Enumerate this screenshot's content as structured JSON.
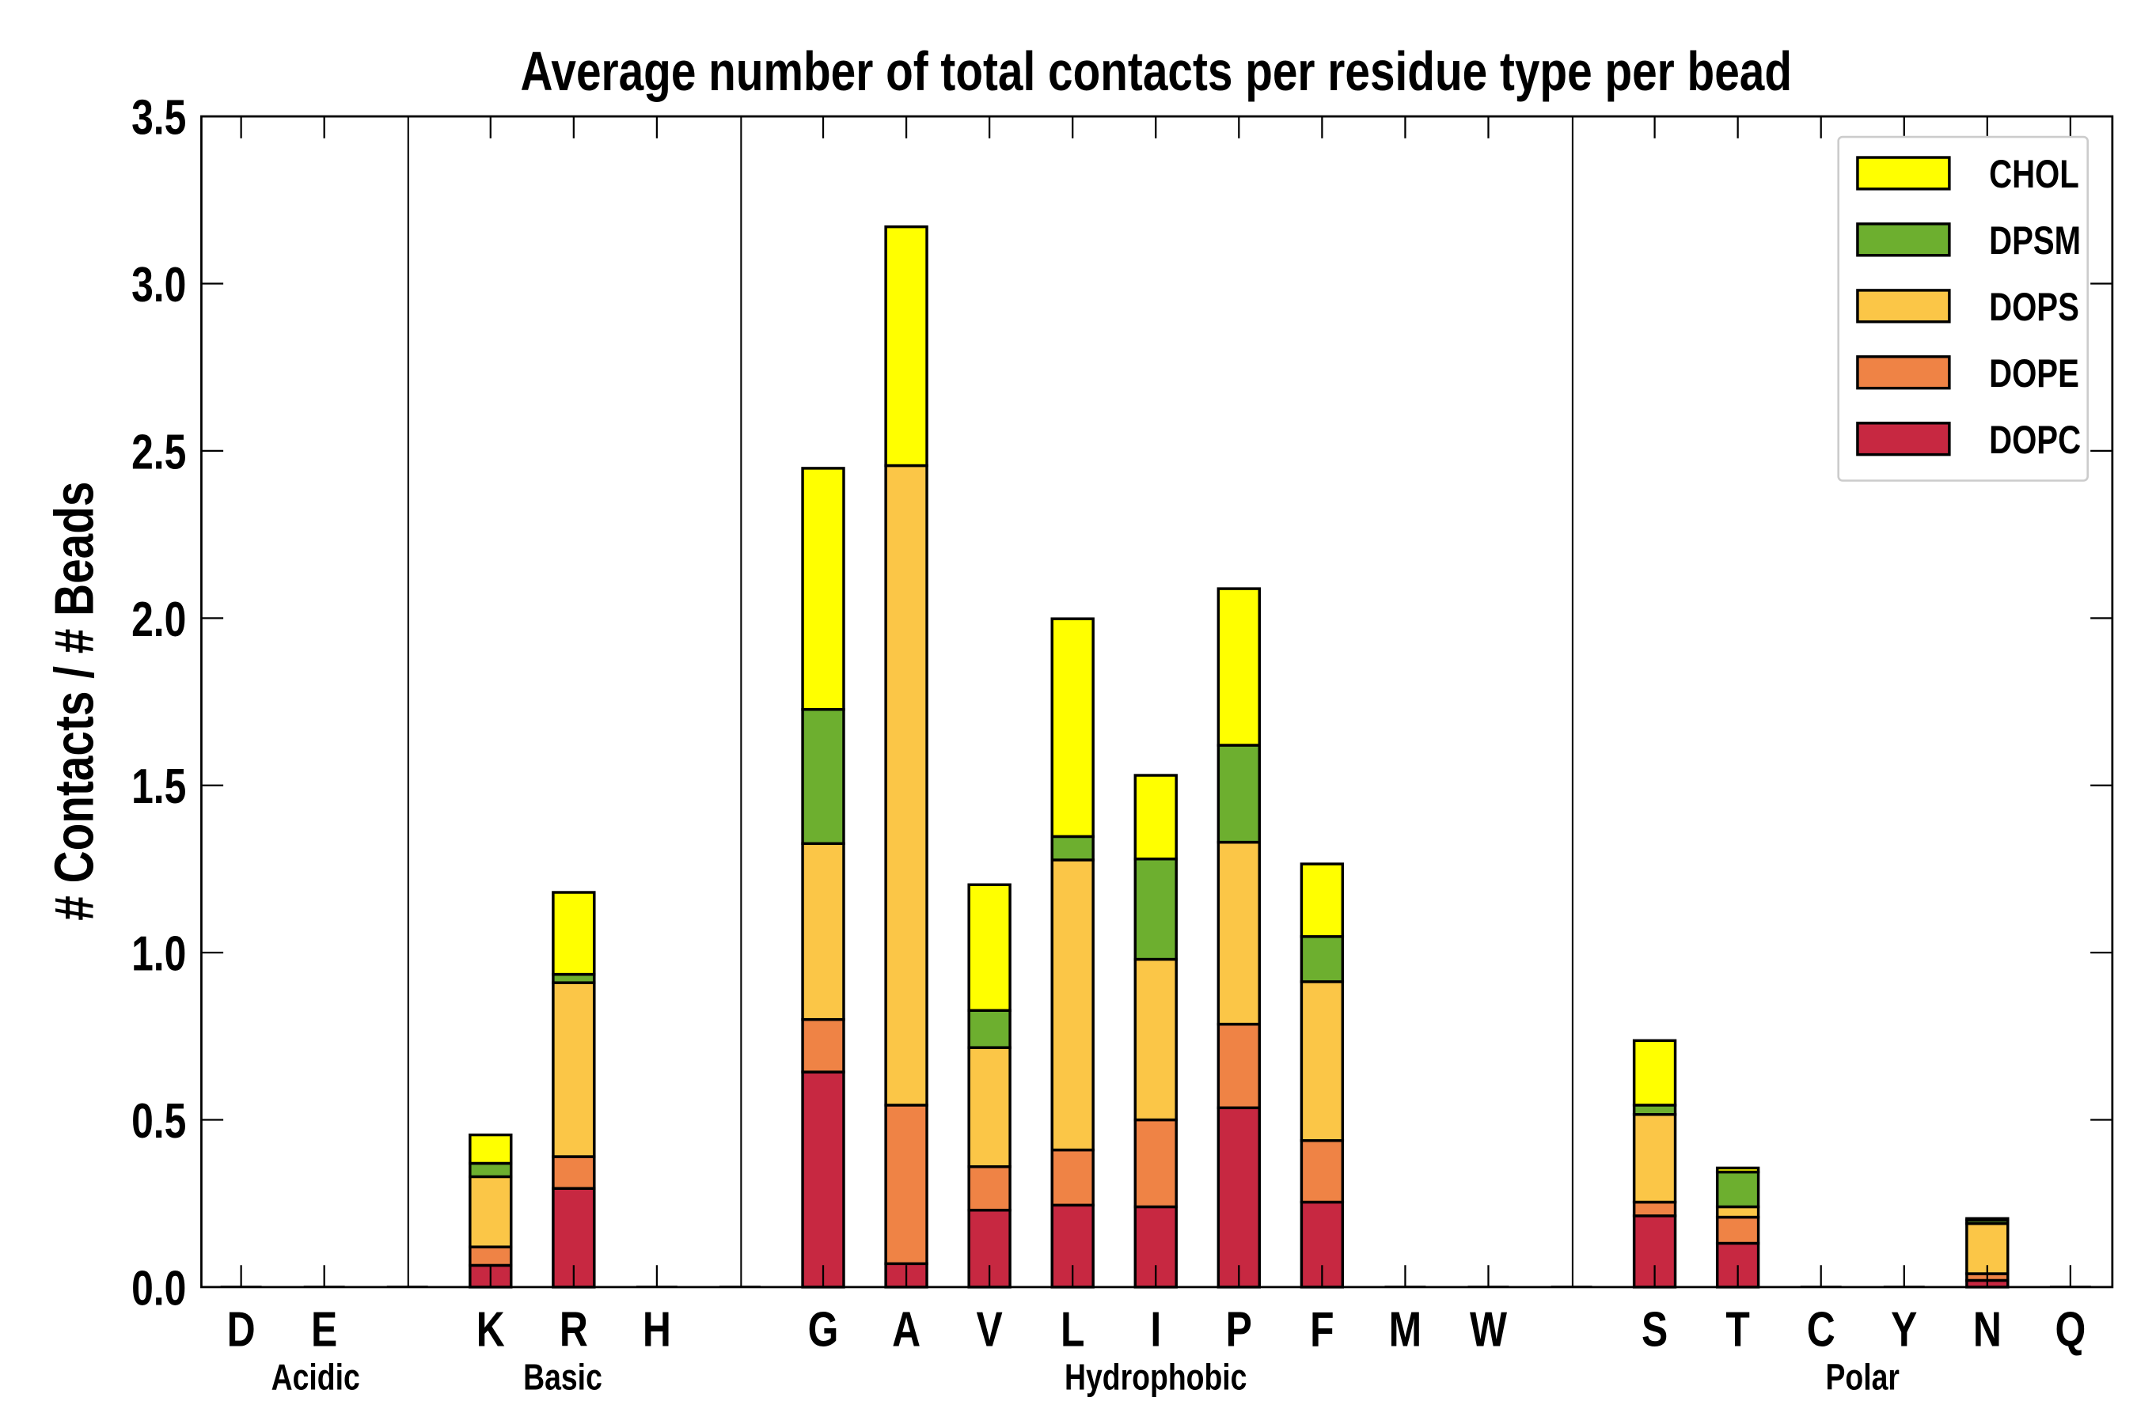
{
  "chart_data": {
    "type": "bar",
    "stacked": true,
    "title": "Average number of total contacts per residue type per bead",
    "xlabel": "",
    "ylabel": "# Contacts / # Beads",
    "ylim": [
      0,
      3.5
    ],
    "yticks": [
      "0.0",
      "0.5",
      "1.0",
      "1.5",
      "2.0",
      "2.5",
      "3.0",
      "3.5"
    ],
    "legend_position": "top-right",
    "categories": [
      "D",
      "E",
      "K",
      "R",
      "H",
      "G",
      "A",
      "V",
      "L",
      "I",
      "P",
      "F",
      "M",
      "W",
      "S",
      "T",
      "C",
      "Y",
      "N",
      "Q"
    ],
    "groups": [
      {
        "name": "Acidic",
        "members": [
          "D",
          "E"
        ]
      },
      {
        "name": "Basic",
        "members": [
          "K",
          "R",
          "H"
        ]
      },
      {
        "name": "Hydrophobic",
        "members": [
          "G",
          "A",
          "V",
          "L",
          "I",
          "P",
          "F",
          "M",
          "W"
        ]
      },
      {
        "name": "Polar",
        "members": [
          "S",
          "T",
          "C",
          "Y",
          "N",
          "Q"
        ]
      }
    ],
    "series": [
      {
        "name": "DOPC",
        "color": "#c72841",
        "values": [
          0,
          0,
          0.065,
          0.295,
          0,
          0.643,
          0.07,
          0.23,
          0.245,
          0.24,
          0.536,
          0.254,
          0,
          0,
          0.213,
          0.131,
          0,
          0,
          0.02,
          0
        ]
      },
      {
        "name": "DOPE",
        "color": "#ef8345",
        "values": [
          0,
          0,
          0.055,
          0.095,
          0,
          0.157,
          0.474,
          0.13,
          0.165,
          0.26,
          0.25,
          0.184,
          0,
          0,
          0.041,
          0.078,
          0,
          0,
          0.02,
          0
        ]
      },
      {
        "name": "DOPS",
        "color": "#fbc647",
        "values": [
          0,
          0,
          0.21,
          0.52,
          0,
          0.526,
          1.912,
          0.356,
          0.867,
          0.48,
          0.544,
          0.475,
          0,
          0,
          0.262,
          0.031,
          0,
          0,
          0.15,
          0
        ]
      },
      {
        "name": "DPSM",
        "color": "#6daf2f",
        "values": [
          0,
          0,
          0.04,
          0.025,
          0,
          0.401,
          0.0,
          0.111,
          0.07,
          0.3,
          0.29,
          0.135,
          0,
          0,
          0.028,
          0.104,
          0,
          0,
          0.01,
          0
        ]
      },
      {
        "name": "CHOL",
        "color": "#ffff00",
        "values": [
          0,
          0,
          0.085,
          0.245,
          0,
          0.721,
          0.714,
          0.376,
          0.651,
          0.25,
          0.468,
          0.217,
          0,
          0,
          0.193,
          0.012,
          0,
          0,
          0.005,
          0
        ]
      }
    ]
  }
}
